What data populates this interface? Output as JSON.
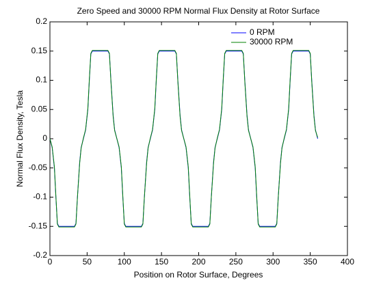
{
  "chart_data": {
    "type": "line",
    "title": "Zero Speed and 30000 RPM Normal Flux Density at Rotor Surface",
    "x_label": "Position on Rotor Surface, Degrees",
    "y_label": "Normal Flux Density, Tesla",
    "x": [
      0,
      3,
      6,
      8,
      10,
      12,
      33,
      35,
      37,
      40,
      42,
      45,
      48,
      51,
      53,
      55,
      57,
      78,
      80,
      82,
      85,
      87,
      90,
      93,
      96,
      98,
      100,
      102,
      123,
      125,
      127,
      130,
      132,
      135,
      138,
      141,
      143,
      145,
      147,
      168,
      170,
      172,
      175,
      177,
      180,
      183,
      186,
      188,
      190,
      192,
      213,
      215,
      217,
      220,
      222,
      225,
      228,
      231,
      233,
      235,
      237,
      258,
      260,
      262,
      265,
      267,
      270,
      273,
      276,
      278,
      280,
      282,
      303,
      305,
      307,
      310,
      312,
      315,
      318,
      321,
      323,
      325,
      327,
      348,
      350,
      352,
      355,
      357,
      360
    ],
    "series": [
      {
        "name": "0 RPM",
        "color": "#0000ff",
        "values": [
          0,
          -0.015,
          -0.05,
          -0.1,
          -0.145,
          -0.15,
          -0.15,
          -0.145,
          -0.1,
          -0.04,
          -0.015,
          0,
          0.015,
          0.05,
          0.1,
          0.145,
          0.15,
          0.15,
          0.145,
          0.1,
          0.04,
          0.015,
          0,
          -0.015,
          -0.05,
          -0.1,
          -0.145,
          -0.15,
          -0.15,
          -0.145,
          -0.1,
          -0.04,
          -0.015,
          0,
          0.015,
          0.05,
          0.1,
          0.145,
          0.15,
          0.15,
          0.145,
          0.1,
          0.04,
          0.015,
          0,
          -0.015,
          -0.05,
          -0.1,
          -0.145,
          -0.15,
          -0.15,
          -0.145,
          -0.1,
          -0.04,
          -0.015,
          0,
          0.015,
          0.05,
          0.1,
          0.145,
          0.15,
          0.15,
          0.145,
          0.1,
          0.04,
          0.015,
          0,
          -0.015,
          -0.05,
          -0.1,
          -0.145,
          -0.15,
          -0.15,
          -0.145,
          -0.1,
          -0.04,
          -0.015,
          0,
          0.015,
          0.05,
          0.1,
          0.145,
          0.15,
          0.15,
          0.145,
          0.1,
          0.04,
          0.015,
          0
        ]
      },
      {
        "name": "30000 RPM",
        "color": "#008000",
        "values": [
          0,
          -0.014,
          -0.048,
          -0.098,
          -0.146,
          -0.151,
          -0.151,
          -0.146,
          -0.1,
          -0.042,
          -0.016,
          0.001,
          0.016,
          0.052,
          0.102,
          0.146,
          0.151,
          0.151,
          0.146,
          0.098,
          0.038,
          0.014,
          0,
          -0.014,
          -0.048,
          -0.098,
          -0.146,
          -0.151,
          -0.151,
          -0.146,
          -0.1,
          -0.042,
          -0.016,
          0.001,
          0.016,
          0.052,
          0.102,
          0.146,
          0.151,
          0.151,
          0.146,
          0.098,
          0.038,
          0.014,
          0,
          -0.014,
          -0.048,
          -0.098,
          -0.146,
          -0.151,
          -0.151,
          -0.146,
          -0.1,
          -0.042,
          -0.016,
          0.001,
          0.016,
          0.052,
          0.102,
          0.146,
          0.151,
          0.151,
          0.146,
          0.098,
          0.038,
          0.014,
          0,
          -0.014,
          -0.048,
          -0.098,
          -0.146,
          -0.151,
          -0.151,
          -0.146,
          -0.1,
          -0.042,
          -0.016,
          0.001,
          0.016,
          0.052,
          0.102,
          0.146,
          0.151,
          0.151,
          0.146,
          0.098,
          0.038,
          0.014,
          0.002
        ]
      }
    ],
    "xlim": [
      0,
      400
    ],
    "xticks": [
      0,
      50,
      100,
      150,
      200,
      250,
      300,
      350,
      400
    ],
    "ylim": [
      -0.2,
      0.2
    ],
    "yticks": [
      -0.2,
      -0.15,
      -0.1,
      -0.05,
      0,
      0.05,
      0.1,
      0.15,
      0.2
    ],
    "grid": false,
    "legend": "upper right"
  }
}
